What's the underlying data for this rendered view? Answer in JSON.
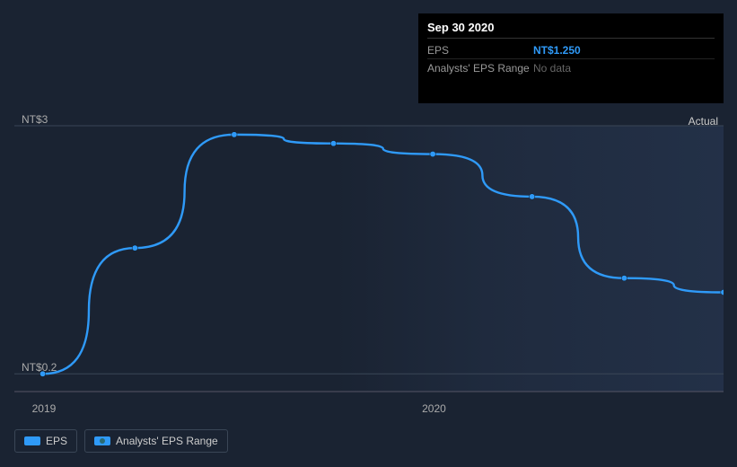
{
  "tooltip": {
    "date": "Sep 30 2020",
    "rows": [
      {
        "label": "EPS",
        "value": "NT$1.250",
        "value_color": "#2f9af8"
      },
      {
        "label": "Analysts' EPS Range",
        "value": "No data",
        "value_color": "#666666"
      }
    ]
  },
  "actual_label": "Actual",
  "y_axis": {
    "top": {
      "text": "NT$3",
      "value": 3.0
    },
    "bottom": {
      "text": "NT$0.2",
      "value": 0.2
    },
    "min": 0.0,
    "max": 3.0
  },
  "x_axis": {
    "ticks": [
      {
        "label": "2019",
        "t": 0.04
      },
      {
        "label": "2020",
        "t": 0.59
      }
    ],
    "t_min": 0.0,
    "t_max": 1.0
  },
  "chart": {
    "type": "line",
    "background_color": "#1a2332",
    "grid_color": "#3a4656",
    "baseline_color": "#556070",
    "line_color": "#2f9af8",
    "line_width": 2.4,
    "marker_radius": 3.2,
    "marker_fill": "#2f9af8",
    "shade_region": {
      "t_start": 0.45,
      "t_end": 1.0,
      "from": "#24324a",
      "to": "#1a2332"
    },
    "series_eps": [
      {
        "t": 0.04,
        "v": 0.2
      },
      {
        "t": 0.17,
        "v": 1.62
      },
      {
        "t": 0.31,
        "v": 2.9
      },
      {
        "t": 0.45,
        "v": 2.8
      },
      {
        "t": 0.59,
        "v": 2.68
      },
      {
        "t": 0.73,
        "v": 2.2
      },
      {
        "t": 0.86,
        "v": 1.28
      },
      {
        "t": 1.0,
        "v": 1.12
      }
    ]
  },
  "legend": {
    "items": [
      {
        "label": "EPS",
        "line_color": "#2f9af8",
        "dot_color": "#2f9af8"
      },
      {
        "label": "Analysts' EPS Range",
        "line_color": "#2f9af8",
        "dot_color": "#2a6b72"
      }
    ]
  }
}
